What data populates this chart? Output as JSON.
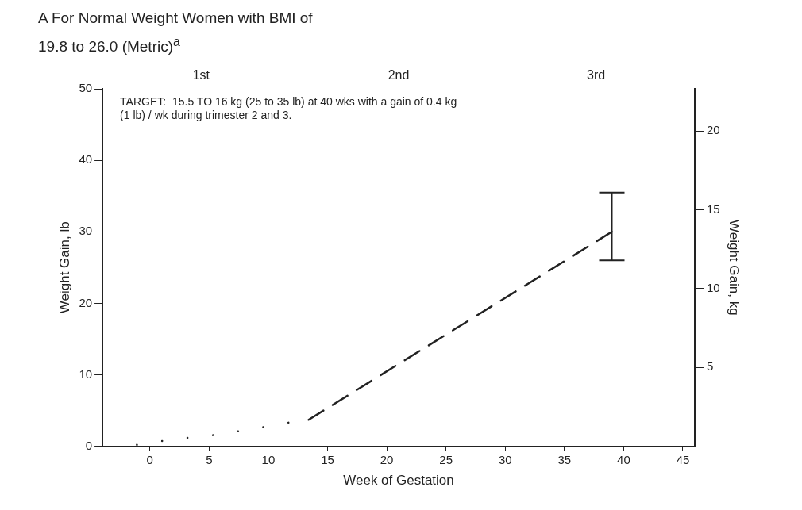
{
  "chart_data": {
    "type": "line",
    "title": "A  For Normal Weight Women with BMI of 19.8 to 26.0 (Metric)$^{a}$",
    "xlabel": "Week of Gestation",
    "ylabel": "Weight Gain, lb",
    "y2label": "Weight Gain, kg",
    "series": [
      {
        "color": "#222222",
        "line_style": "dotted",
        "x": [
          -1.1,
          1.3,
          3.3,
          5.6,
          7.9,
          10,
          11.7
        ],
        "values": [
          0.2,
          0.8,
          1.2,
          1.6,
          2.2,
          2.8,
          3.3
        ]
      },
      {
        "color": "#222222",
        "line_style": "dashed",
        "x": [
          13.4,
          39
        ],
        "values": [
          3.7,
          30
        ],
        "errors": [
          null,
          [
            26,
            35.5
          ]
        ]
      }
    ],
    "xlim": [
      -4,
      46
    ],
    "xticks": [
      0,
      5,
      10,
      15,
      20,
      25,
      30,
      35,
      40,
      45
    ],
    "ylim": [
      0,
      50
    ],
    "yticks": [
      0,
      10,
      20,
      30,
      40,
      50
    ],
    "y2lim": [
      0,
      22.68
    ],
    "y2ticks": [
      5,
      10,
      15,
      20
    ],
    "annotations": [
      "TARGET:  15.5 TO 16 kg (25 to 35 lb) at 40 wks with a gain of 0.4 kg (1 lb) / wk during trimester 2 and 3.",
      "1st",
      "2nd",
      "3rd"
    ],
    "marker": "none",
    "grid": false,
    "legend": false
  }
}
